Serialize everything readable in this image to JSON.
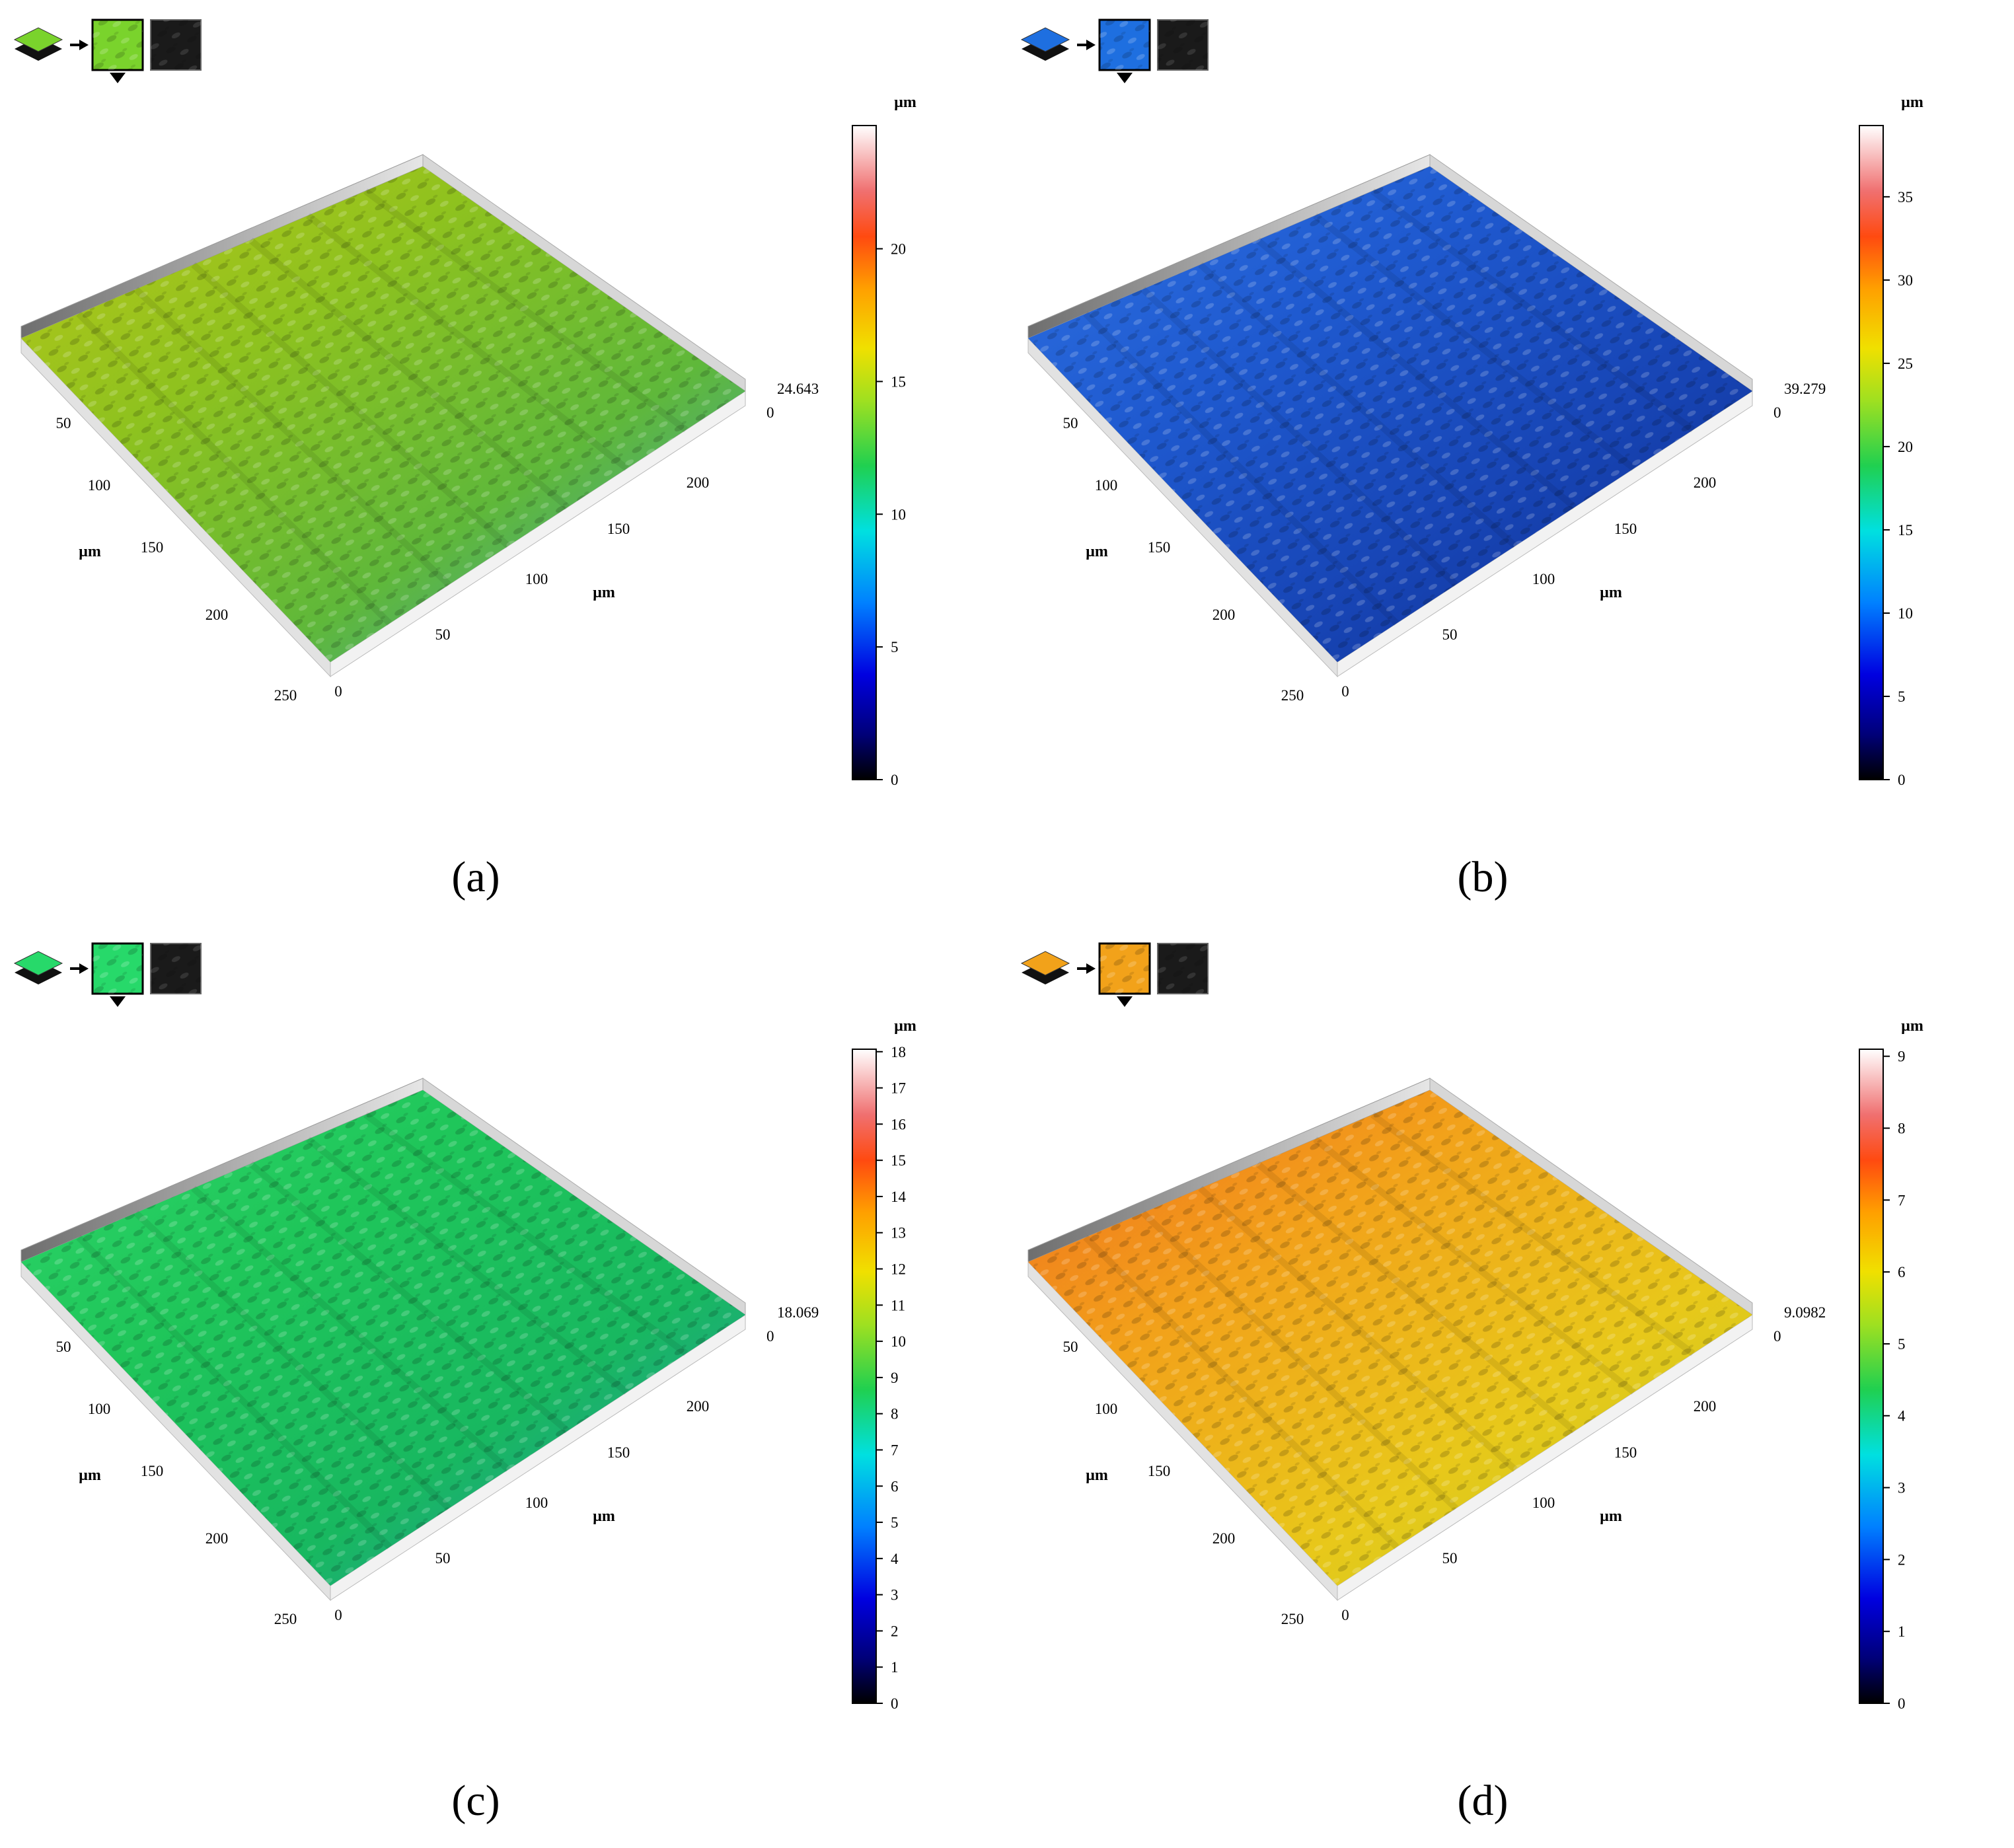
{
  "panels": [
    {
      "id": "a",
      "caption": "(a)",
      "unit": "µm",
      "max_label": "24.643",
      "zero_label": "0",
      "colorbar_ticks": [
        "0",
        "5",
        "10",
        "15",
        "20"
      ],
      "colorbar_max": 24.643,
      "surface_colors": [
        "#b9c61a",
        "#8fc21e",
        "#5fb83a",
        "#3a9ec0"
      ],
      "icon_color": "#7ad32c",
      "left_axis": [
        "50",
        "100",
        "150",
        "200",
        "250"
      ],
      "right_axis": [
        "0",
        "50",
        "100",
        "150",
        "200"
      ],
      "left_unit": "µm",
      "right_unit": "µm"
    },
    {
      "id": "b",
      "caption": "(b)",
      "unit": "µm",
      "max_label": "39.279",
      "zero_label": "0",
      "colorbar_ticks": [
        "0",
        "5",
        "10",
        "15",
        "20",
        "25",
        "30",
        "35"
      ],
      "colorbar_max": 39.279,
      "surface_colors": [
        "#2f72e2",
        "#1f5ad0",
        "#1744b4",
        "#0e2c8a"
      ],
      "icon_color": "#1e6fe0",
      "left_axis": [
        "50",
        "100",
        "150",
        "200",
        "250"
      ],
      "right_axis": [
        "0",
        "50",
        "100",
        "150",
        "200"
      ],
      "left_unit": "µm",
      "right_unit": "µm"
    },
    {
      "id": "c",
      "caption": "(c)",
      "unit": "µm",
      "max_label": "18.069",
      "zero_label": "0",
      "colorbar_ticks": [
        "0",
        "1",
        "2",
        "3",
        "4",
        "5",
        "6",
        "7",
        "8",
        "9",
        "10",
        "11",
        "12",
        "13",
        "14",
        "15",
        "16",
        "17",
        "18"
      ],
      "colorbar_max": 18.069,
      "surface_colors": [
        "#2fd66a",
        "#1fc65a",
        "#18b860",
        "#2a8fb0"
      ],
      "icon_color": "#27d96a",
      "left_axis": [
        "50",
        "100",
        "150",
        "200",
        "250"
      ],
      "right_axis": [
        "0",
        "50",
        "100",
        "150",
        "200"
      ],
      "left_unit": "µm",
      "right_unit": "µm"
    },
    {
      "id": "d",
      "caption": "(d)",
      "unit": "µm",
      "max_label": "9.0982",
      "zero_label": "0",
      "colorbar_ticks": [
        "0",
        "1",
        "2",
        "3",
        "4",
        "5",
        "6",
        "7",
        "8",
        "9"
      ],
      "colorbar_max": 9.0982,
      "surface_colors": [
        "#f06a1e",
        "#f2a21a",
        "#e8c81a",
        "#b9cf22"
      ],
      "icon_color": "#f2a21a",
      "left_axis": [
        "50",
        "100",
        "150",
        "200",
        "250"
      ],
      "right_axis": [
        "0",
        "50",
        "100",
        "150",
        "200"
      ],
      "left_unit": "µm",
      "right_unit": "µm"
    }
  ]
}
